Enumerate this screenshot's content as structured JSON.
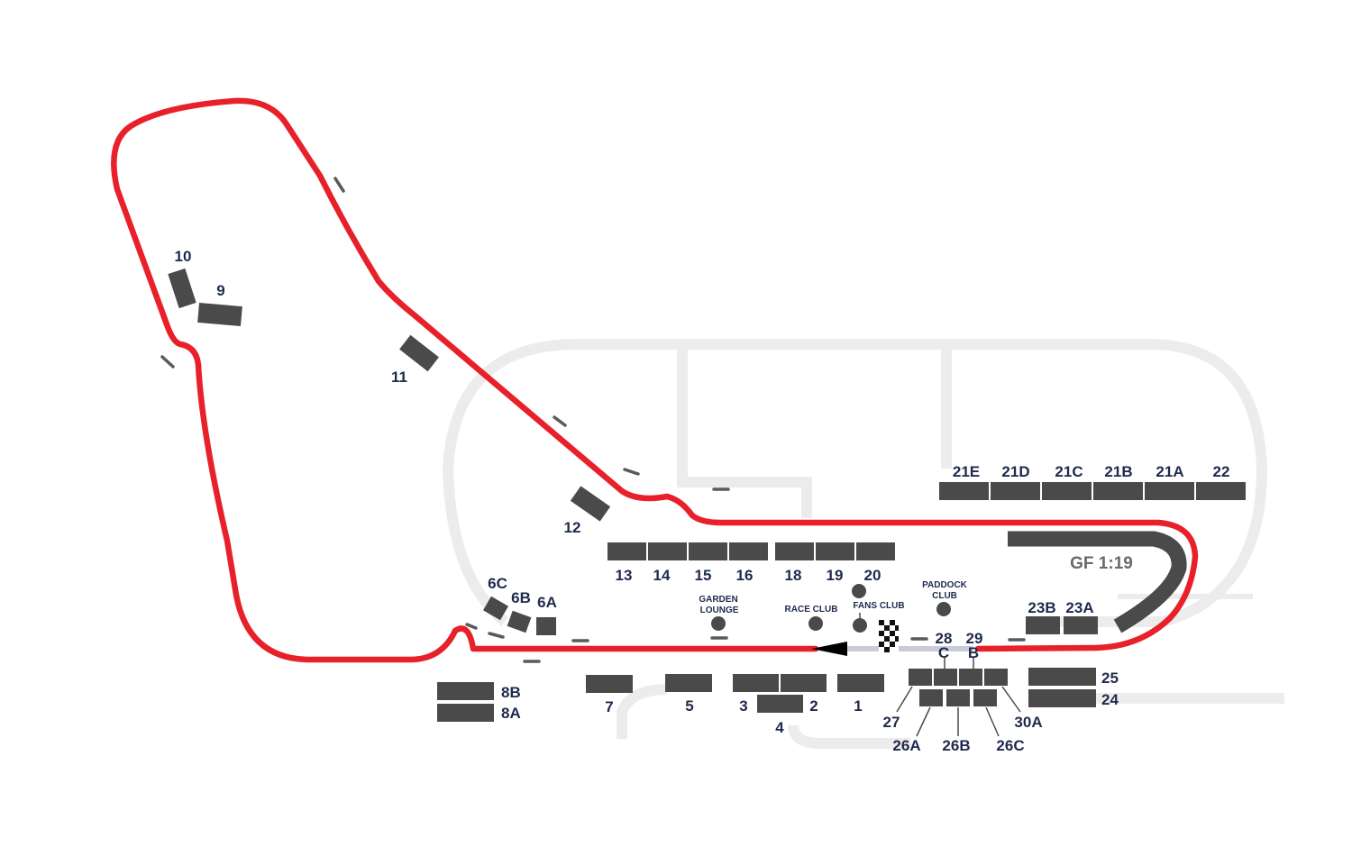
{
  "colors": {
    "track": "#e8202a",
    "stand": "#4a4a4a",
    "label": "#1f2a4d",
    "background_track": "#ececec",
    "pitlane": "#c9ccd8"
  },
  "grandstands": {
    "s1": "1",
    "s2": "2",
    "s3": "3",
    "s4": "4",
    "s5": "5",
    "s7": "7",
    "s8a": "8A",
    "s8b": "8B",
    "s6a": "6A",
    "s6b": "6B",
    "s6c": "6C",
    "s9": "9",
    "s10": "10",
    "s11": "11",
    "s12": "12",
    "s13": "13",
    "s14": "14",
    "s15": "15",
    "s16": "16",
    "s18": "18",
    "s19": "19",
    "s20": "20",
    "s21e": "21E",
    "s21d": "21D",
    "s21c": "21C",
    "s21b": "21B",
    "s21a": "21A",
    "s22": "22",
    "s23a": "23A",
    "s23b": "23B",
    "s24": "24",
    "s25": "25",
    "s26a": "26A",
    "s26b": "26B",
    "s26c": "26C",
    "s27": "27",
    "s28": "28",
    "s29": "29",
    "s30a": "30A",
    "gate_b": "B",
    "gate_c": "C"
  },
  "hospitality": {
    "garden_lounge_1": "GARDEN",
    "garden_lounge_2": "LOUNGE",
    "race_club": "RACE CLUB",
    "fans_club": "FANS CLUB",
    "paddock_club_1": "PADDOCK",
    "paddock_club_2": "CLUB"
  },
  "stand_gf": "GF 1:19"
}
